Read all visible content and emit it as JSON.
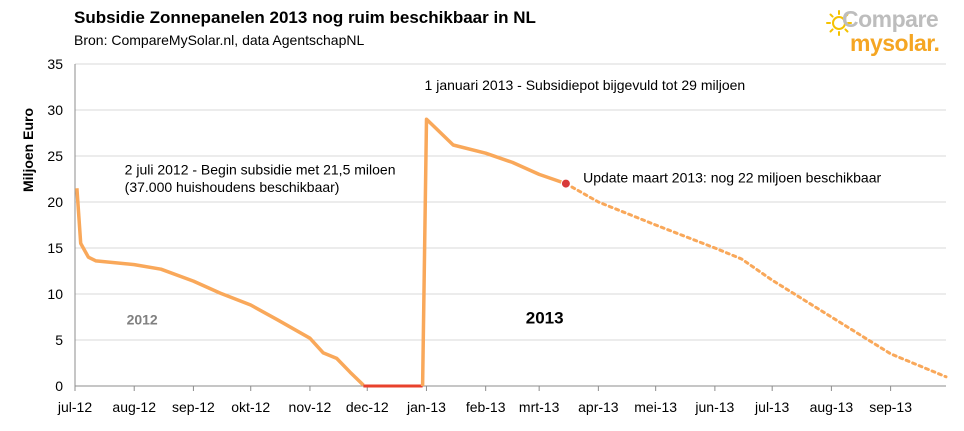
{
  "header": {
    "title": "Subsidie Zonnepanelen 2013 nog ruim beschikbaar in NL",
    "subtitle": "Bron: CompareMySolar.nl, data AgentschapNL"
  },
  "logo": {
    "line1": "Compare",
    "line2": "mysolar."
  },
  "colors": {
    "series": "#f9a85a",
    "zero_segment": "#e8412c",
    "marker": "#d83a3a",
    "grid": "#d9d9d9",
    "axis": "#8c8c8c"
  },
  "chart_data": {
    "type": "line",
    "title": "Subsidie Zonnepanelen 2013 nog ruim beschikbaar in NL",
    "subtitle": "Bron: CompareMySolar.nl, data AgentschapNL",
    "xlabel": "",
    "ylabel": "Miljoen Euro",
    "ylim": [
      0,
      35
    ],
    "yticks": [
      0,
      5,
      10,
      15,
      20,
      25,
      30,
      35
    ],
    "xlim": [
      "2012-07-01",
      "2013-09-30"
    ],
    "xticks": [
      {
        "date": "2012-07-01",
        "label": "jul-12"
      },
      {
        "date": "2012-08-01",
        "label": "aug-12"
      },
      {
        "date": "2012-09-01",
        "label": "sep-12"
      },
      {
        "date": "2012-10-01",
        "label": "okt-12"
      },
      {
        "date": "2012-11-01",
        "label": "nov-12"
      },
      {
        "date": "2012-12-01",
        "label": "dec-12"
      },
      {
        "date": "2013-01-01",
        "label": "jan-13"
      },
      {
        "date": "2013-02-01",
        "label": "feb-13"
      },
      {
        "date": "2013-03-01",
        "label": "mrt-13"
      },
      {
        "date": "2013-04-01",
        "label": "apr-13"
      },
      {
        "date": "2013-05-01",
        "label": "mei-13"
      },
      {
        "date": "2013-06-01",
        "label": "jun-13"
      },
      {
        "date": "2013-07-01",
        "label": "jul-13"
      },
      {
        "date": "2013-08-01",
        "label": "aug-13"
      },
      {
        "date": "2013-09-01",
        "label": "sep-13"
      }
    ],
    "grid": "horizontal",
    "series": [
      {
        "style": "solid",
        "points": [
          {
            "x": "2012-07-02",
            "y": 21.5
          },
          {
            "x": "2012-07-04",
            "y": 15.5
          },
          {
            "x": "2012-07-08",
            "y": 14.0
          },
          {
            "x": "2012-07-12",
            "y": 13.6
          },
          {
            "x": "2012-08-01",
            "y": 13.2
          },
          {
            "x": "2012-08-15",
            "y": 12.7
          },
          {
            "x": "2012-09-01",
            "y": 11.4
          },
          {
            "x": "2012-09-15",
            "y": 10.1
          },
          {
            "x": "2012-10-01",
            "y": 8.8
          },
          {
            "x": "2012-10-15",
            "y": 7.2
          },
          {
            "x": "2012-11-01",
            "y": 5.2
          },
          {
            "x": "2012-11-08",
            "y": 3.6
          },
          {
            "x": "2012-11-15",
            "y": 3.0
          },
          {
            "x": "2012-11-22",
            "y": 1.5
          },
          {
            "x": "2012-11-29",
            "y": 0.1
          }
        ]
      },
      {
        "style": "zero",
        "points": [
          {
            "x": "2012-11-29",
            "y": 0
          },
          {
            "x": "2012-12-30",
            "y": 0
          }
        ]
      },
      {
        "style": "solid",
        "points": [
          {
            "x": "2012-12-30",
            "y": 0
          },
          {
            "x": "2013-01-01",
            "y": 29.0
          },
          {
            "x": "2013-01-15",
            "y": 26.2
          },
          {
            "x": "2013-02-01",
            "y": 25.3
          },
          {
            "x": "2013-02-15",
            "y": 24.3
          },
          {
            "x": "2013-03-01",
            "y": 23.0
          },
          {
            "x": "2013-03-15",
            "y": 22.0
          }
        ]
      },
      {
        "style": "dotted",
        "points": [
          {
            "x": "2013-03-15",
            "y": 22.0
          },
          {
            "x": "2013-04-01",
            "y": 20.0
          },
          {
            "x": "2013-05-01",
            "y": 17.5
          },
          {
            "x": "2013-06-01",
            "y": 15.0
          },
          {
            "x": "2013-06-15",
            "y": 13.8
          },
          {
            "x": "2013-07-01",
            "y": 11.5
          },
          {
            "x": "2013-08-01",
            "y": 7.5
          },
          {
            "x": "2013-09-01",
            "y": 3.5
          },
          {
            "x": "2013-09-30",
            "y": 1.0
          }
        ]
      }
    ],
    "marker": {
      "x": "2013-03-15",
      "y": 22.0
    },
    "annotations": [
      {
        "text": "1 januari 2013 - Subsidiepot bijgevuld tot 29 miljoen",
        "x": "2012-12-31",
        "y": 32.2,
        "bold": false
      },
      {
        "text": "2 juli 2012 - Begin subsidie met 21,5 miloen",
        "x": "2012-07-27",
        "y": 23.0,
        "bold": false
      },
      {
        "text": "(37.000 huishoudens beschikbaar)",
        "x": "2012-07-27",
        "y": 21.1,
        "bold": false
      },
      {
        "text": "Update maart 2013: nog 22 miljoen beschikbaar",
        "x": "2013-03-24",
        "y": 22.1,
        "bold": false
      },
      {
        "text": "2012",
        "x": "2012-07-28",
        "y": 6.7,
        "bold": true,
        "color": "#808080",
        "size": 14
      },
      {
        "text": "2013",
        "x": "2013-02-22",
        "y": 6.8,
        "bold": true,
        "color": "#000000",
        "size": 17
      }
    ]
  }
}
